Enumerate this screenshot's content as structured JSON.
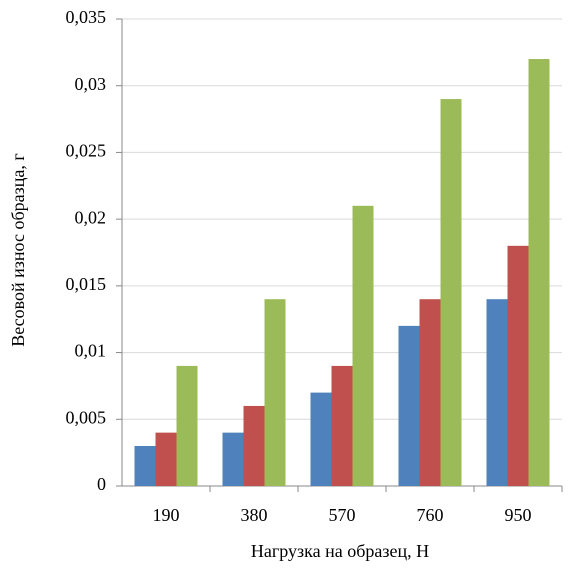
{
  "chart_data": {
    "type": "bar",
    "x_label": "Нагрузка на образец, Н",
    "y_label": "Весовой износ образца, г",
    "categories": [
      "190",
      "380",
      "570",
      "760",
      "950"
    ],
    "series": [
      {
        "color": "#4f81bd",
        "values": [
          0.003,
          0.004,
          0.007,
          0.012,
          0.014
        ]
      },
      {
        "color": "#c0504d",
        "values": [
          0.004,
          0.006,
          0.009,
          0.014,
          0.018
        ]
      },
      {
        "color": "#9bbb59",
        "values": [
          0.009,
          0.014,
          0.021,
          0.029,
          0.032
        ]
      }
    ],
    "ylim": [
      0,
      0.035
    ],
    "yticks": [
      0,
      {
        "value": 0.005,
        "label": "0,005"
      },
      {
        "value": 0.01,
        "label": "0,01"
      },
      {
        "value": 0.015,
        "label": "0,015"
      },
      {
        "value": 0.02,
        "label": "0,02"
      },
      {
        "value": 0.025,
        "label": "0,025"
      },
      {
        "value": 0.03,
        "label": "0,03"
      },
      {
        "value": 0.035,
        "label": "0,035"
      }
    ],
    "grid": true
  }
}
